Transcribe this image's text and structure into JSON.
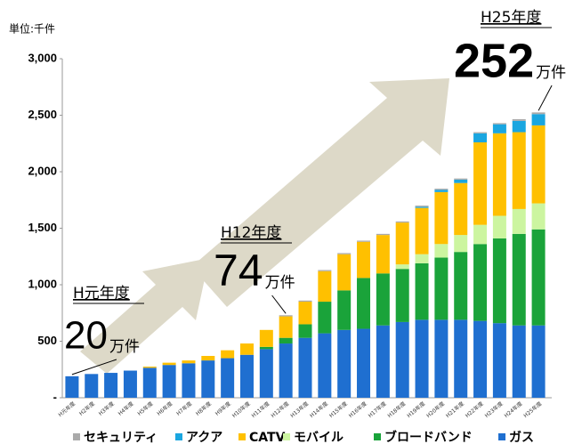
{
  "chart_data": {
    "type": "stacked_bar",
    "unit_label": "単位:千件",
    "categories": [
      "H元年度",
      "H2年度",
      "H3年度",
      "H4年度",
      "H5年度",
      "H6年度",
      "H7年度",
      "H8年度",
      "H9年度",
      "H10年度",
      "H11年度",
      "H12年度",
      "H13年度",
      "H14年度",
      "H15年度",
      "H16年度",
      "H17年度",
      "H18年度",
      "H19年度",
      "H20年度",
      "H21年度",
      "H22年度",
      "H23年度",
      "H24年度",
      "H25年度"
    ],
    "series": [
      {
        "name": "ガス",
        "color": "#1f6fd0",
        "values": [
          190,
          210,
          220,
          240,
          265,
          290,
          305,
          330,
          350,
          380,
          430,
          480,
          530,
          570,
          600,
          610,
          640,
          670,
          690,
          690,
          690,
          680,
          660,
          640,
          640
        ]
      },
      {
        "name": "ブロードバンド",
        "color": "#1aa33a",
        "values": [
          0,
          0,
          0,
          0,
          0,
          0,
          0,
          0,
          0,
          0,
          20,
          50,
          120,
          280,
          350,
          450,
          460,
          470,
          500,
          550,
          600,
          680,
          750,
          810,
          850
        ]
      },
      {
        "name": "モバイル",
        "color": "#ccf5a0",
        "values": [
          0,
          0,
          0,
          0,
          0,
          0,
          0,
          0,
          0,
          0,
          0,
          0,
          0,
          0,
          0,
          0,
          0,
          40,
          80,
          120,
          150,
          170,
          200,
          220,
          230
        ]
      },
      {
        "name": "CATV",
        "color": "#ffc000",
        "values": [
          0,
          0,
          0,
          0,
          10,
          20,
          25,
          40,
          70,
          100,
          150,
          190,
          200,
          270,
          320,
          320,
          340,
          370,
          410,
          460,
          460,
          730,
          730,
          680,
          690
        ]
      },
      {
        "name": "アクア",
        "color": "#1aa6e0",
        "values": [
          0,
          0,
          0,
          0,
          0,
          0,
          0,
          0,
          0,
          0,
          0,
          0,
          0,
          0,
          0,
          0,
          0,
          0,
          10,
          20,
          30,
          80,
          80,
          100,
          100
        ]
      },
      {
        "name": "セキュリティ",
        "color": "#aaaaaa",
        "values": [
          0,
          0,
          0,
          0,
          0,
          0,
          0,
          0,
          0,
          0,
          0,
          10,
          10,
          10,
          10,
          10,
          10,
          10,
          10,
          10,
          10,
          10,
          10,
          15,
          15
        ]
      }
    ],
    "ylim": [
      0,
      3000
    ],
    "yticks": [
      {
        "value": 0,
        "label": "-"
      },
      500,
      {
        "value": 1000,
        "label": "1,000"
      },
      {
        "value": 1500,
        "label": "1,500"
      },
      {
        "value": 2000,
        "label": "2,000"
      },
      {
        "value": 2500,
        "label": "2,500"
      },
      {
        "value": 3000,
        "label": "3,000"
      }
    ],
    "annotations": [
      {
        "era": "H元年度",
        "number": "20",
        "unit": "万件"
      },
      {
        "era": "H12年度",
        "number": "74",
        "unit": "万件"
      },
      {
        "era": "H25年度",
        "number": "252",
        "unit": "万件"
      }
    ]
  }
}
